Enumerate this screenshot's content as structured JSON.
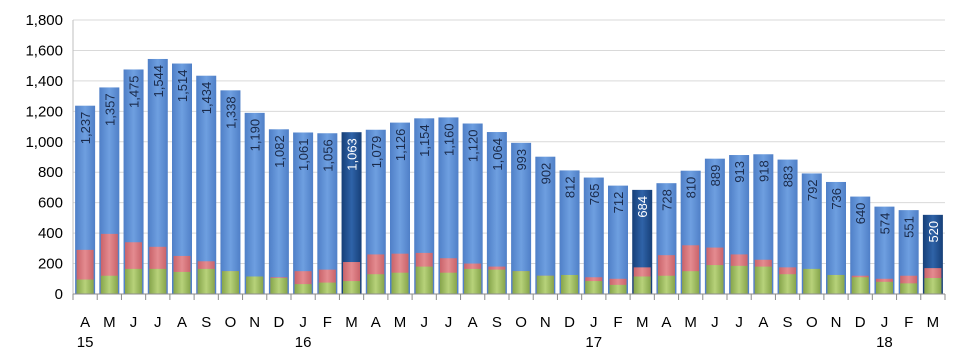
{
  "chart_data": {
    "type": "bar",
    "categories": [
      "A",
      "M",
      "J",
      "J",
      "A",
      "S",
      "O",
      "N",
      "D",
      "J",
      "F",
      "M",
      "A",
      "M",
      "J",
      "J",
      "A",
      "S",
      "O",
      "N",
      "D",
      "J",
      "F",
      "M",
      "A",
      "M",
      "J",
      "J",
      "A",
      "S",
      "O",
      "N",
      "D",
      "J",
      "F",
      "M"
    ],
    "year_labels": [
      {
        "index": 0,
        "label": "15"
      },
      {
        "index": 9,
        "label": "16"
      },
      {
        "index": 21,
        "label": "17"
      },
      {
        "index": 33,
        "label": "18"
      }
    ],
    "series": [
      {
        "values": [
          1237,
          1357,
          1475,
          1544,
          1514,
          1434,
          1338,
          1190,
          1082,
          1061,
          1056,
          1063,
          1079,
          1126,
          1154,
          1160,
          1120,
          1064,
          993,
          902,
          812,
          765,
          712,
          684,
          728,
          810,
          889,
          913,
          918,
          883,
          792,
          736,
          640,
          574,
          551,
          520
        ]
      },
      {
        "values": [
          290,
          395,
          340,
          310,
          250,
          215,
          150,
          110,
          110,
          150,
          160,
          210,
          260,
          265,
          270,
          235,
          200,
          180,
          150,
          120,
          120,
          110,
          100,
          175,
          255,
          320,
          305,
          260,
          225,
          175,
          160,
          125,
          120,
          100,
          120,
          170
        ]
      },
      {
        "values": [
          95,
          120,
          165,
          165,
          145,
          165,
          150,
          115,
          105,
          65,
          75,
          85,
          130,
          140,
          180,
          140,
          165,
          160,
          150,
          120,
          125,
          85,
          60,
          115,
          120,
          150,
          190,
          185,
          180,
          130,
          165,
          125,
          110,
          80,
          70,
          105
        ]
      }
    ],
    "highlight_indices": [
      11,
      23,
      35
    ],
    "colors": {
      "total": "#5b8fd6",
      "highlight": "#1f4f8f",
      "middle": "#d9747a",
      "bottom": "#9dbb5e",
      "grid": "#d9d9d9"
    },
    "yticks": [
      0,
      200,
      400,
      600,
      800,
      1000,
      1200,
      1400,
      1600,
      1800
    ],
    "ytick_labels": [
      "0",
      "200",
      "400",
      "600",
      "800",
      "1,000",
      "1,200",
      "1,400",
      "1,600",
      "1,800"
    ],
    "ylim": [
      0,
      1800
    ],
    "grid": true
  }
}
